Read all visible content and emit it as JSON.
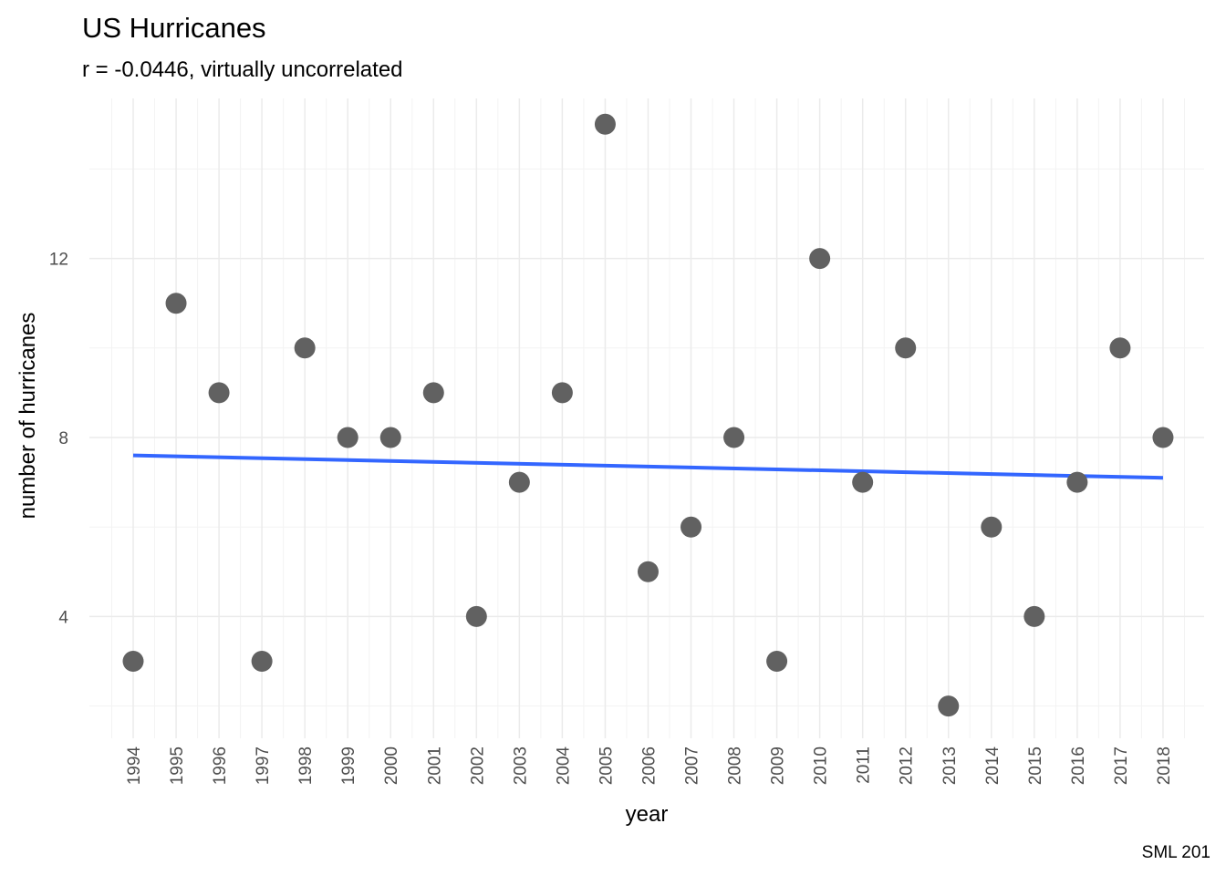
{
  "chart_data": {
    "type": "scatter",
    "title": "US Hurricanes",
    "subtitle": "r = -0.0446, virtually uncorrelated",
    "xlabel": "year",
    "ylabel": "number of hurricanes",
    "caption": "SML 201",
    "x": [
      "1994",
      "1995",
      "1996",
      "1997",
      "1998",
      "1999",
      "2000",
      "2001",
      "2002",
      "2003",
      "2004",
      "2005",
      "2006",
      "2007",
      "2008",
      "2009",
      "2010",
      "2011",
      "2012",
      "2013",
      "2014",
      "2015",
      "2016",
      "2017",
      "2018"
    ],
    "values": [
      3,
      11,
      9,
      3,
      10,
      8,
      8,
      9,
      4,
      7,
      9,
      15,
      5,
      6,
      8,
      3,
      12,
      7,
      10,
      2,
      6,
      4,
      7,
      10,
      8
    ],
    "y_ticks": [
      "4",
      "8",
      "12"
    ],
    "ylim": [
      1.2,
      15.8
    ],
    "trend_line": {
      "start": 7.6,
      "end": 7.1
    },
    "grid": true,
    "legend": "none",
    "point_color": "#616161",
    "line_color": "#3366ff"
  }
}
